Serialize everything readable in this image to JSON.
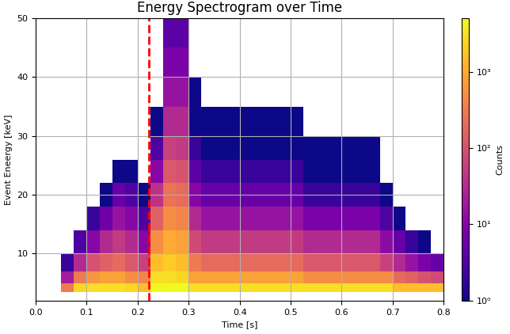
{
  "chart_data": {
    "type": "heatmap",
    "title": "Energy Spectrogram over Time",
    "x_label": "Time [s]",
    "y_label": "Event Eneergy [keV]",
    "xlim": [
      0.0,
      0.8
    ],
    "xticks": [
      0.0,
      0.1,
      0.2,
      0.3,
      0.4,
      0.5,
      0.6,
      0.7,
      0.8
    ],
    "ylim": [
      2,
      50
    ],
    "yticks": [
      10,
      20,
      30,
      40,
      50
    ],
    "grid": true,
    "x_edges": [
      0.0,
      0.025,
      0.05,
      0.075,
      0.1,
      0.125,
      0.15,
      0.175,
      0.2,
      0.225,
      0.25,
      0.275,
      0.3,
      0.325,
      0.35,
      0.375,
      0.4,
      0.425,
      0.45,
      0.475,
      0.5,
      0.525,
      0.55,
      0.575,
      0.6,
      0.625,
      0.65,
      0.675,
      0.7,
      0.725,
      0.75,
      0.775,
      0.8
    ],
    "y_edges": [
      3.5,
      5,
      7,
      10,
      14,
      18,
      22,
      26,
      30,
      35,
      40,
      45,
      50
    ],
    "counts": [
      [
        0,
        0,
        300,
        2500,
        3000,
        3000,
        3000,
        2500,
        1500,
        5000,
        5000,
        5000,
        3000,
        3000,
        3000,
        3000,
        3000,
        3000,
        3000,
        3000,
        3000,
        3000,
        3000,
        3000,
        3000,
        3000,
        3000,
        3000,
        1500,
        1500,
        1500,
        1500
      ],
      [
        0,
        0,
        20,
        300,
        600,
        800,
        800,
        500,
        400,
        3000,
        3000,
        2500,
        800,
        800,
        800,
        800,
        800,
        800,
        800,
        800,
        800,
        500,
        500,
        500,
        500,
        500,
        500,
        500,
        200,
        150,
        100,
        80
      ],
      [
        0,
        0,
        2,
        30,
        100,
        150,
        200,
        120,
        60,
        1500,
        2000,
        1500,
        300,
        200,
        200,
        200,
        200,
        200,
        200,
        200,
        200,
        120,
        120,
        120,
        120,
        120,
        120,
        60,
        30,
        15,
        8,
        5
      ],
      [
        0,
        0,
        0,
        3,
        10,
        30,
        50,
        30,
        10,
        500,
        1000,
        800,
        80,
        50,
        50,
        50,
        50,
        50,
        50,
        50,
        50,
        30,
        30,
        30,
        30,
        30,
        30,
        12,
        5,
        2,
        1,
        0
      ],
      [
        0,
        0,
        0,
        0,
        2,
        6,
        15,
        10,
        3,
        150,
        500,
        400,
        30,
        15,
        15,
        15,
        15,
        15,
        15,
        15,
        15,
        8,
        8,
        8,
        8,
        8,
        8,
        3,
        1,
        0,
        0,
        0
      ],
      [
        0,
        0,
        0,
        0,
        0,
        1,
        5,
        3,
        1,
        40,
        250,
        200,
        10,
        5,
        5,
        5,
        5,
        5,
        5,
        5,
        5,
        2,
        2,
        2,
        2,
        2,
        2,
        1,
        0,
        0,
        0,
        0
      ],
      [
        0,
        0,
        0,
        0,
        0,
        0,
        1,
        1,
        0,
        10,
        120,
        100,
        4,
        2,
        2,
        2,
        2,
        2,
        2,
        2,
        2,
        1,
        1,
        1,
        1,
        1,
        1,
        0,
        0,
        0,
        0,
        0
      ],
      [
        0,
        0,
        0,
        0,
        0,
        0,
        0,
        0,
        0,
        3,
        60,
        50,
        2,
        1,
        1,
        1,
        1,
        1,
        1,
        1,
        1,
        1,
        1,
        1,
        1,
        1,
        1,
        0,
        0,
        0,
        0,
        0
      ],
      [
        0,
        0,
        0,
        0,
        0,
        0,
        0,
        0,
        0,
        1,
        30,
        30,
        1,
        1,
        1,
        1,
        1,
        1,
        1,
        1,
        1,
        0,
        0,
        0,
        0,
        0,
        0,
        0,
        0,
        0,
        0,
        0
      ],
      [
        0,
        0,
        0,
        0,
        0,
        0,
        0,
        0,
        0,
        0,
        15,
        15,
        1,
        0,
        0,
        0,
        0,
        0,
        0,
        0,
        0,
        0,
        0,
        0,
        0,
        0,
        0,
        0,
        0,
        0,
        0,
        0
      ],
      [
        0,
        0,
        0,
        0,
        0,
        0,
        0,
        0,
        0,
        0,
        8,
        8,
        0,
        0,
        0,
        0,
        0,
        0,
        0,
        0,
        0,
        0,
        0,
        0,
        0,
        0,
        0,
        0,
        0,
        0,
        0,
        0
      ],
      [
        0,
        0,
        0,
        0,
        0,
        0,
        0,
        0,
        0,
        0,
        4,
        4,
        0,
        0,
        0,
        0,
        0,
        0,
        0,
        0,
        0,
        0,
        0,
        0,
        0,
        0,
        0,
        0,
        0,
        0,
        0,
        0
      ]
    ],
    "colorbar": {
      "label": "Counts",
      "range": [
        1,
        5000
      ],
      "ticks": [
        {
          "value": 1,
          "label": "10⁰"
        },
        {
          "value": 10,
          "label": "10¹"
        },
        {
          "value": 100,
          "label": "10²"
        },
        {
          "value": 1000,
          "label": "10³"
        }
      ]
    },
    "markers": [
      {
        "x": 0.222,
        "color": "#ff0000",
        "line_style": "dashed"
      }
    ]
  }
}
